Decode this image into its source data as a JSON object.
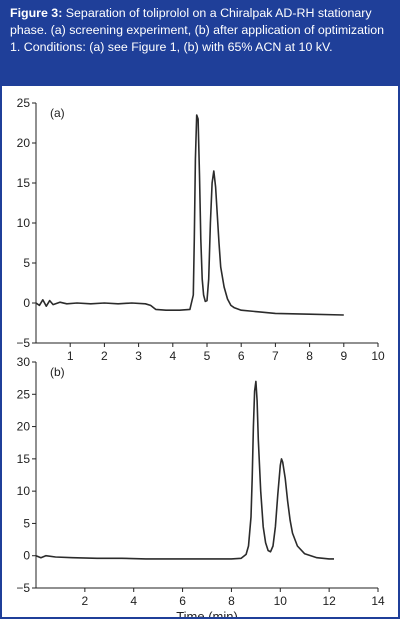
{
  "caption": {
    "label": "Figure 3:",
    "text": " Separation of toliprolol on a Chiralpak AD-RH stationary phase. (a) screening experiment, (b) after application of optimization 1. Conditions: (a) see Figure 1, (b) with 65% ACN at 10 kV."
  },
  "colors": {
    "frame": "#1f3f99",
    "trace": "#2b2b2b",
    "axis": "#222222"
  },
  "chart_data": [
    {
      "type": "line",
      "panel_label": "(a)",
      "xlabel": "",
      "ylabel": "",
      "xlim": [
        0,
        10
      ],
      "ylim": [
        -5,
        25
      ],
      "xticks": [
        1,
        2,
        3,
        4,
        5,
        6,
        7,
        8,
        9,
        10
      ],
      "yticks": [
        -5,
        0,
        5,
        10,
        15,
        20,
        25
      ],
      "grid": false,
      "series": [
        {
          "x": [
            0,
            0.1,
            0.2,
            0.3,
            0.4,
            0.5,
            0.7,
            0.9,
            1.2,
            1.6,
            2.0,
            2.4,
            2.8,
            3.2,
            3.35,
            3.5,
            3.8,
            4.2,
            4.5,
            4.6,
            4.63,
            4.66,
            4.7,
            4.74,
            4.78,
            4.82,
            4.86,
            4.9,
            4.95,
            5.0,
            5.05,
            5.1,
            5.15,
            5.2,
            5.25,
            5.3,
            5.35,
            5.4,
            5.5,
            5.6,
            5.7,
            5.8,
            6.0,
            6.5,
            7.0,
            8.0,
            9.0
          ],
          "y": [
            0,
            -0.3,
            0.4,
            -0.4,
            0.3,
            -0.2,
            0.1,
            -0.1,
            0,
            -0.1,
            0,
            -0.1,
            0,
            -0.1,
            -0.3,
            -0.8,
            -0.9,
            -0.9,
            -0.8,
            1,
            8,
            18,
            23.5,
            23,
            16,
            8,
            3,
            1,
            0.2,
            0.3,
            3,
            10,
            15,
            16.5,
            14.5,
            11,
            7.5,
            4.5,
            2,
            0.5,
            -0.3,
            -0.6,
            -0.9,
            -1.1,
            -1.3,
            -1.4,
            -1.5
          ]
        }
      ]
    },
    {
      "type": "line",
      "panel_label": "(b)",
      "xlabel": "Time (min)",
      "ylabel": "",
      "xlim": [
        0,
        14
      ],
      "ylim": [
        -5,
        30
      ],
      "xticks": [
        2,
        4,
        6,
        8,
        10,
        12,
        14
      ],
      "yticks": [
        -5,
        0,
        5,
        10,
        15,
        20,
        25,
        30
      ],
      "grid": false,
      "series": [
        {
          "x": [
            0,
            0.2,
            0.4,
            0.8,
            1.5,
            2.5,
            3.5,
            4.5,
            5.5,
            6.5,
            7.5,
            8.0,
            8.4,
            8.6,
            8.7,
            8.8,
            8.85,
            8.9,
            8.95,
            9.0,
            9.05,
            9.1,
            9.2,
            9.3,
            9.4,
            9.5,
            9.6,
            9.7,
            9.8,
            9.9,
            10.0,
            10.05,
            10.1,
            10.2,
            10.3,
            10.4,
            10.5,
            10.7,
            11.0,
            11.5,
            12.0,
            12.2
          ],
          "y": [
            0,
            -0.3,
            0,
            -0.2,
            -0.3,
            -0.4,
            -0.4,
            -0.5,
            -0.5,
            -0.5,
            -0.5,
            -0.5,
            -0.4,
            0.2,
            1.5,
            6,
            12,
            20,
            25.5,
            27,
            24,
            18,
            10,
            4.5,
            2,
            0.8,
            0.6,
            1.5,
            4.5,
            9.5,
            14,
            15,
            14.5,
            12,
            8.5,
            5.5,
            3.5,
            1.5,
            0.3,
            -0.3,
            -0.5,
            -0.5
          ]
        }
      ]
    }
  ]
}
